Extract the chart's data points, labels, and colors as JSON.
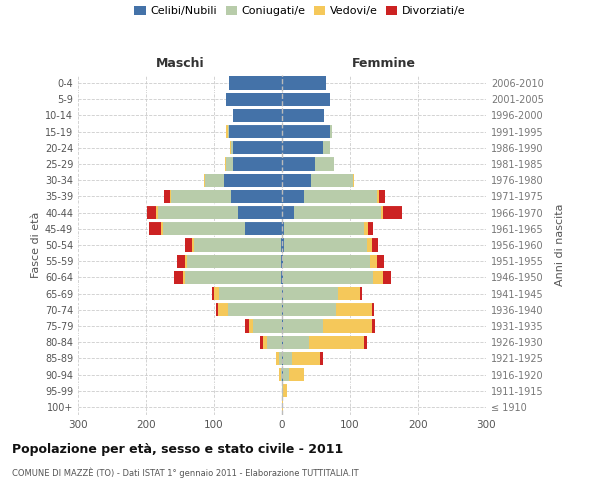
{
  "age_groups": [
    "100+",
    "95-99",
    "90-94",
    "85-89",
    "80-84",
    "75-79",
    "70-74",
    "65-69",
    "60-64",
    "55-59",
    "50-54",
    "45-49",
    "40-44",
    "35-39",
    "30-34",
    "25-29",
    "20-24",
    "15-19",
    "10-14",
    "5-9",
    "0-4"
  ],
  "birth_years": [
    "≤ 1910",
    "1911-1915",
    "1916-1920",
    "1921-1925",
    "1926-1930",
    "1931-1935",
    "1936-1940",
    "1941-1945",
    "1946-1950",
    "1951-1955",
    "1956-1960",
    "1961-1965",
    "1966-1970",
    "1971-1975",
    "1976-1980",
    "1981-1985",
    "1986-1990",
    "1991-1995",
    "1996-2000",
    "2001-2005",
    "2006-2010"
  ],
  "males": {
    "celibi": [
      0,
      0,
      0,
      0,
      0,
      0,
      0,
      0,
      2,
      2,
      2,
      55,
      65,
      75,
      85,
      72,
      72,
      78,
      72,
      82,
      78
    ],
    "coniugati": [
      0,
      0,
      2,
      5,
      22,
      42,
      80,
      92,
      140,
      138,
      128,
      120,
      118,
      88,
      28,
      10,
      3,
      2,
      0,
      0,
      0
    ],
    "vedovi": [
      0,
      0,
      2,
      4,
      6,
      6,
      14,
      8,
      3,
      3,
      3,
      3,
      3,
      2,
      2,
      2,
      2,
      2,
      0,
      0,
      0
    ],
    "divorziati": [
      0,
      0,
      0,
      0,
      5,
      6,
      3,
      3,
      14,
      12,
      10,
      18,
      12,
      8,
      0,
      0,
      0,
      0,
      0,
      0,
      0
    ]
  },
  "females": {
    "nubili": [
      0,
      0,
      2,
      2,
      2,
      2,
      2,
      2,
      2,
      2,
      3,
      3,
      18,
      32,
      42,
      48,
      60,
      70,
      62,
      70,
      65
    ],
    "coniugate": [
      0,
      2,
      8,
      12,
      38,
      58,
      78,
      80,
      132,
      128,
      122,
      118,
      128,
      108,
      62,
      28,
      10,
      3,
      0,
      0,
      0
    ],
    "vedove": [
      2,
      5,
      22,
      42,
      80,
      72,
      52,
      32,
      14,
      10,
      8,
      5,
      3,
      3,
      2,
      0,
      0,
      0,
      0,
      0,
      0
    ],
    "divorziate": [
      0,
      0,
      0,
      5,
      5,
      5,
      3,
      3,
      12,
      10,
      8,
      8,
      28,
      8,
      0,
      0,
      0,
      0,
      0,
      0,
      0
    ]
  },
  "colors": {
    "celibi": "#4472a8",
    "coniugati": "#b8ccaa",
    "vedovi": "#f5c85a",
    "divorziati": "#cc2222"
  },
  "title": "Popolazione per età, sesso e stato civile - 2011",
  "subtitle": "COMUNE DI MAZZÈ (TO) - Dati ISTAT 1° gennaio 2011 - Elaborazione TUTTITALIA.IT",
  "xlabel_left": "Maschi",
  "xlabel_right": "Femmine",
  "ylabel": "Fasce di età",
  "ylabel_right": "Anni di nascita",
  "xlim": 300,
  "background_color": "#ffffff",
  "grid_color": "#cccccc",
  "legend_labels": [
    "Celibi/Nubili",
    "Coniugati/e",
    "Vedovi/e",
    "Divorziati/e"
  ]
}
